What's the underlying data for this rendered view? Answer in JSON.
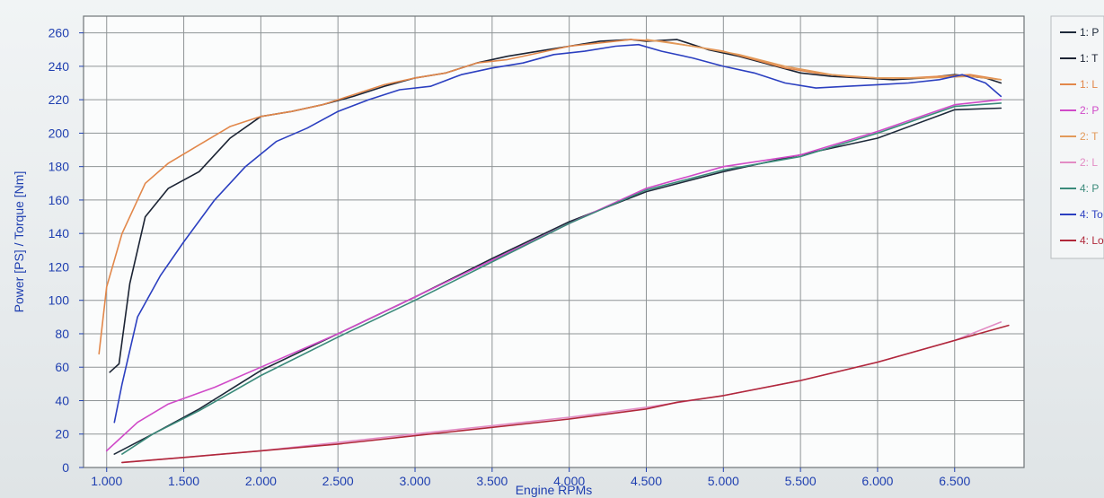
{
  "chart_data": {
    "type": "line",
    "xlabel": "Engine RPMs",
    "ylabel": "Power [PS] / Torque [Nm]",
    "xlim": [
      850,
      6950
    ],
    "ylim": [
      0,
      270
    ],
    "x_ticks": [
      1000,
      1500,
      2000,
      2500,
      3000,
      3500,
      4000,
      4500,
      5000,
      5500,
      6000,
      6500
    ],
    "x_tick_labels": [
      "1.000",
      "1.500",
      "2.000",
      "2.500",
      "3.000",
      "3.500",
      "4.000",
      "4.500",
      "5.000",
      "5.500",
      "6.000",
      "6.500"
    ],
    "y_ticks": [
      0,
      20,
      40,
      60,
      80,
      100,
      120,
      140,
      160,
      180,
      200,
      220,
      240,
      260
    ],
    "grid": true,
    "background": "#fbfcfc",
    "grid_color": "#8f9496",
    "text_color": "#1f3fb0",
    "legend_position": "right",
    "series": [
      {
        "legend": "1: P",
        "color": "#1e2a3a",
        "x": [
          1050,
          1300,
          1600,
          2000,
          2500,
          3000,
          3500,
          4000,
          4500,
          5000,
          5500,
          6000,
          6500,
          6800
        ],
        "y": [
          8,
          20,
          35,
          58,
          80,
          102,
          125,
          147,
          165,
          177,
          187,
          197,
          214,
          215
        ]
      },
      {
        "legend": "1: T",
        "color": "#1b2333",
        "x": [
          1020,
          1080,
          1150,
          1250,
          1400,
          1600,
          1800,
          2000,
          2200,
          2400,
          2600,
          2800,
          3000,
          3200,
          3400,
          3600,
          3800,
          4000,
          4200,
          4400,
          4500,
          4700,
          4900,
          5100,
          5300,
          5500,
          5700,
          5900,
          6100,
          6300,
          6500,
          6700,
          6800
        ],
        "y": [
          57,
          62,
          110,
          150,
          167,
          177,
          197,
          210,
          213,
          217,
          222,
          228,
          233,
          236,
          242,
          246,
          249,
          252,
          255,
          256,
          255,
          256,
          250,
          246,
          241,
          236,
          234,
          233,
          232,
          233,
          235,
          233,
          230
        ]
      },
      {
        "legend": "1: L",
        "color": "#e2874a",
        "x": [
          950,
          1000,
          1100,
          1250,
          1400,
          1600,
          1800,
          2000,
          2200,
          2400,
          2600,
          2800,
          3000,
          3200,
          3400,
          3600,
          3800,
          4000,
          4200,
          4400,
          4600,
          4800,
          5000,
          5200,
          5400,
          5600,
          5800,
          6000,
          6200,
          6400,
          6600,
          6800
        ],
        "y": [
          68,
          108,
          140,
          170,
          182,
          193,
          204,
          210,
          213,
          217,
          223,
          229,
          233,
          236,
          242,
          244,
          248,
          252,
          254,
          256,
          255,
          252,
          249,
          244,
          239,
          236,
          234,
          233,
          233,
          234,
          235,
          232
        ]
      },
      {
        "legend": "2: P",
        "color": "#d04ac8",
        "x": [
          1000,
          1200,
          1400,
          1700,
          2000,
          2500,
          3000,
          3500,
          4000,
          4500,
          5000,
          5500,
          6000,
          6500,
          6800
        ],
        "y": [
          10,
          27,
          38,
          48,
          60,
          80,
          102,
          124,
          146,
          167,
          180,
          187,
          201,
          217,
          220
        ]
      },
      {
        "legend": "2: T",
        "color": "#e29a5a",
        "x": [
          4500,
          4800,
          5100,
          5400,
          5700,
          6000,
          6300,
          6600,
          6800
        ],
        "y": [
          256,
          252,
          247,
          240,
          235,
          233,
          233,
          234,
          232
        ]
      },
      {
        "legend": "2: L",
        "color": "#e28cc4",
        "x": [
          1100,
          1500,
          2000,
          2500,
          3000,
          3500,
          4000,
          4500,
          5000,
          5500,
          6000,
          6500,
          6800
        ],
        "y": [
          3,
          6,
          10,
          15,
          20,
          25,
          30,
          36,
          43,
          52,
          63,
          76,
          87
        ]
      },
      {
        "legend": "4: P",
        "color": "#3a8a7a",
        "x": [
          1100,
          1300,
          1600,
          2000,
          2500,
          3000,
          3500,
          4000,
          4500,
          5000,
          5500,
          6000,
          6500,
          6800
        ],
        "y": [
          8,
          20,
          34,
          55,
          78,
          100,
          123,
          146,
          166,
          178,
          186,
          200,
          216,
          218
        ]
      },
      {
        "legend": "4: To",
        "color": "#2b3fc0",
        "x": [
          1050,
          1100,
          1200,
          1350,
          1500,
          1700,
          1900,
          2100,
          2300,
          2500,
          2700,
          2900,
          3100,
          3300,
          3500,
          3700,
          3900,
          4100,
          4300,
          4450,
          4600,
          4800,
          5000,
          5200,
          5400,
          5600,
          5800,
          6000,
          6200,
          6400,
          6550,
          6700,
          6800
        ],
        "y": [
          27,
          50,
          90,
          115,
          135,
          160,
          180,
          195,
          203,
          213,
          220,
          226,
          228,
          235,
          239,
          242,
          247,
          249,
          252,
          253,
          249,
          245,
          240,
          236,
          230,
          227,
          228,
          229,
          230,
          232,
          235,
          230,
          222
        ]
      },
      {
        "legend": "4: Lo",
        "color": "#b0283a",
        "x": [
          1100,
          1500,
          2000,
          2500,
          3000,
          3500,
          4000,
          4500,
          4700,
          5000,
          5500,
          6000,
          6500,
          6850
        ],
        "y": [
          3,
          6,
          10,
          14,
          19,
          24,
          29,
          35,
          39,
          43,
          52,
          63,
          76,
          85
        ]
      }
    ]
  }
}
